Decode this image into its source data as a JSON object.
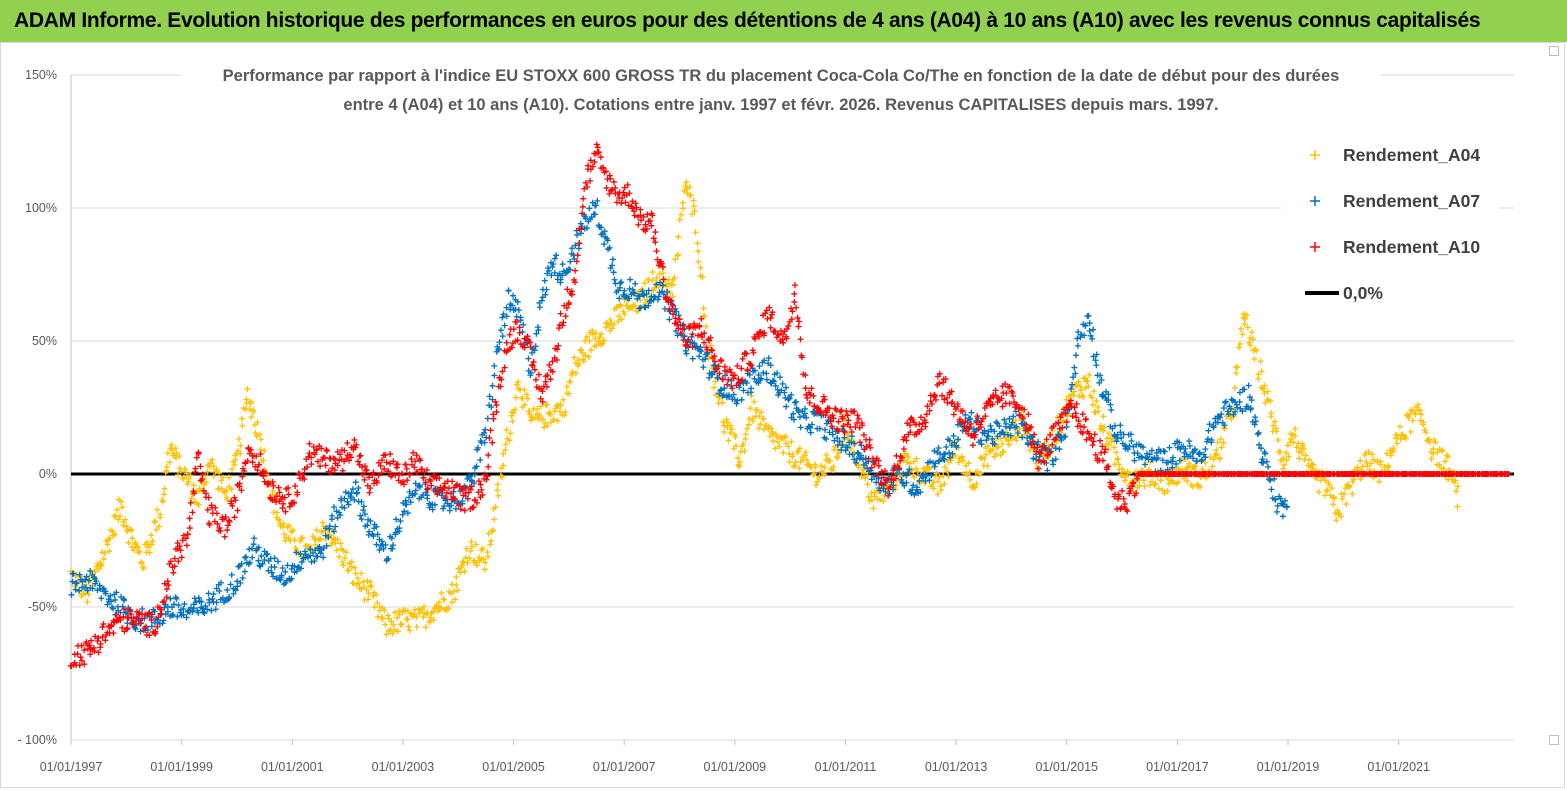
{
  "banner": {
    "title": "ADAM Informe. Evolution historique des performances en euros pour des détentions de 4 ans (A04) à 10 ans (A10) avec les revenus connus capitalisés",
    "color": "#92d050"
  },
  "chart_data": {
    "type": "scatter",
    "title_line1": "Performance par rapport à l'indice EU STOXX 600 GROSS TR  du placement Coca-Cola Co/The en fonction de la date de début pour des durées",
    "title_line2": "entre 4 (A04) et 10 ans (A10).  Cotations entre janv. 1997 et févr. 2026. Revenus  CAPITALISES depuis mars. 1997.",
    "xlabel": "",
    "ylabel": "",
    "x_ticks": [
      "01/01/1997",
      "01/01/1999",
      "01/01/2001",
      "01/01/2003",
      "01/01/2005",
      "01/01/2007",
      "01/01/2009",
      "01/01/2011",
      "01/01/2013",
      "01/01/2015",
      "01/01/2017",
      "01/01/2019",
      "01/01/2021"
    ],
    "y_ticks": [
      "150%",
      "100%",
      "50%",
      "0%",
      "-50%",
      "- 100%"
    ],
    "xlim": [
      "1997-01-01",
      "2023-02-01"
    ],
    "ylim": [
      -1.0,
      1.5
    ],
    "grid": "horizontal",
    "legend_position": "right",
    "series": [
      {
        "name": "Rendement_A04",
        "color": "#ffc000",
        "marker": "+",
        "points": [
          [
            1997.0,
            -0.38
          ],
          [
            1997.3,
            -0.45
          ],
          [
            1997.6,
            -0.3
          ],
          [
            1997.9,
            -0.12
          ],
          [
            1998.1,
            -0.25
          ],
          [
            1998.3,
            -0.33
          ],
          [
            1998.6,
            -0.15
          ],
          [
            1998.8,
            0.1
          ],
          [
            1998.9,
            0.05
          ],
          [
            1999.1,
            -0.02
          ],
          [
            1999.3,
            -0.1
          ],
          [
            1999.5,
            0.05
          ],
          [
            1999.8,
            -0.08
          ],
          [
            2000.0,
            0.05
          ],
          [
            2000.2,
            0.3
          ],
          [
            2000.4,
            0.15
          ],
          [
            2000.6,
            -0.05
          ],
          [
            2000.8,
            -0.2
          ],
          [
            2001.0,
            -0.25
          ],
          [
            2001.3,
            -0.3
          ],
          [
            2001.6,
            -0.2
          ],
          [
            2001.9,
            -0.3
          ],
          [
            2002.1,
            -0.38
          ],
          [
            2002.4,
            -0.45
          ],
          [
            2002.7,
            -0.57
          ],
          [
            2003.0,
            -0.55
          ],
          [
            2003.3,
            -0.55
          ],
          [
            2003.6,
            -0.5
          ],
          [
            2003.9,
            -0.45
          ],
          [
            2004.2,
            -0.28
          ],
          [
            2004.5,
            -0.33
          ],
          [
            2004.7,
            -0.1
          ],
          [
            2004.9,
            0.15
          ],
          [
            2005.1,
            0.35
          ],
          [
            2005.3,
            0.2
          ],
          [
            2005.6,
            0.22
          ],
          [
            2005.9,
            0.25
          ],
          [
            2006.1,
            0.4
          ],
          [
            2006.4,
            0.5
          ],
          [
            2006.7,
            0.55
          ],
          [
            2007.0,
            0.62
          ],
          [
            2007.3,
            0.65
          ],
          [
            2007.6,
            0.75
          ],
          [
            2007.9,
            0.7
          ],
          [
            2008.1,
            1.1
          ],
          [
            2008.3,
            0.95
          ],
          [
            2008.5,
            0.5
          ],
          [
            2008.8,
            0.2
          ],
          [
            2009.1,
            0.05
          ],
          [
            2009.3,
            0.25
          ],
          [
            2009.6,
            0.15
          ],
          [
            2009.9,
            0.1
          ],
          [
            2010.2,
            0.05
          ],
          [
            2010.5,
            0.0
          ],
          [
            2010.8,
            0.05
          ],
          [
            2011.0,
            0.18
          ],
          [
            2011.3,
            0.02
          ],
          [
            2011.5,
            -0.1
          ],
          [
            2011.8,
            -0.05
          ],
          [
            2012.1,
            0.05
          ],
          [
            2012.4,
            0.0
          ],
          [
            2012.7,
            -0.05
          ],
          [
            2013.0,
            0.1
          ],
          [
            2013.3,
            -0.02
          ],
          [
            2013.6,
            0.08
          ],
          [
            2013.9,
            0.12
          ],
          [
            2014.2,
            0.2
          ],
          [
            2014.5,
            0.05
          ],
          [
            2014.8,
            0.15
          ],
          [
            2015.1,
            0.3
          ],
          [
            2015.4,
            0.35
          ],
          [
            2015.6,
            0.2
          ],
          [
            2015.9,
            0.05
          ],
          [
            2016.2,
            -0.02
          ],
          [
            2016.5,
            0.0
          ],
          [
            2016.8,
            -0.03
          ],
          [
            2017.1,
            0.02
          ],
          [
            2017.4,
            -0.02
          ],
          [
            2017.7,
            0.05
          ],
          [
            2018.0,
            0.25
          ],
          [
            2018.2,
            0.6
          ],
          [
            2018.4,
            0.45
          ],
          [
            2018.6,
            0.3
          ],
          [
            2018.9,
            0.05
          ],
          [
            2019.1,
            0.15
          ],
          [
            2019.4,
            0.0
          ],
          [
            2019.7,
            -0.05
          ],
          [
            2019.9,
            -0.15
          ],
          [
            2020.1,
            -0.05
          ],
          [
            2020.4,
            0.05
          ],
          [
            2020.7,
            0.0
          ],
          [
            2020.9,
            0.1
          ],
          [
            2021.2,
            0.2
          ],
          [
            2021.4,
            0.22
          ],
          [
            2021.6,
            0.1
          ],
          [
            2021.9,
            0.02
          ],
          [
            2022.1,
            -0.1
          ]
        ]
      },
      {
        "name": "Rendement_A07",
        "color": "#0070c0",
        "marker": "+",
        "points": [
          [
            1997.0,
            -0.42
          ],
          [
            1997.3,
            -0.4
          ],
          [
            1997.6,
            -0.45
          ],
          [
            1997.9,
            -0.5
          ],
          [
            1998.2,
            -0.55
          ],
          [
            1998.5,
            -0.55
          ],
          [
            1998.8,
            -0.5
          ],
          [
            1999.1,
            -0.52
          ],
          [
            1999.4,
            -0.5
          ],
          [
            1999.7,
            -0.45
          ],
          [
            2000.0,
            -0.4
          ],
          [
            2000.3,
            -0.28
          ],
          [
            2000.6,
            -0.35
          ],
          [
            2000.9,
            -0.38
          ],
          [
            2001.2,
            -0.3
          ],
          [
            2001.5,
            -0.3
          ],
          [
            2001.8,
            -0.15
          ],
          [
            2002.1,
            -0.05
          ],
          [
            2002.4,
            -0.2
          ],
          [
            2002.7,
            -0.3
          ],
          [
            2003.0,
            -0.15
          ],
          [
            2003.3,
            -0.05
          ],
          [
            2003.6,
            -0.1
          ],
          [
            2003.9,
            -0.1
          ],
          [
            2004.2,
            -0.05
          ],
          [
            2004.5,
            0.15
          ],
          [
            2004.7,
            0.45
          ],
          [
            2004.9,
            0.65
          ],
          [
            2005.1,
            0.6
          ],
          [
            2005.3,
            0.4
          ],
          [
            2005.5,
            0.65
          ],
          [
            2005.7,
            0.8
          ],
          [
            2005.9,
            0.75
          ],
          [
            2006.1,
            0.85
          ],
          [
            2006.3,
            0.95
          ],
          [
            2006.5,
            1.0
          ],
          [
            2006.7,
            0.85
          ],
          [
            2006.9,
            0.7
          ],
          [
            2007.1,
            0.7
          ],
          [
            2007.3,
            0.65
          ],
          [
            2007.6,
            0.7
          ],
          [
            2007.9,
            0.6
          ],
          [
            2008.1,
            0.5
          ],
          [
            2008.4,
            0.45
          ],
          [
            2008.7,
            0.35
          ],
          [
            2009.0,
            0.3
          ],
          [
            2009.3,
            0.35
          ],
          [
            2009.6,
            0.4
          ],
          [
            2009.9,
            0.3
          ],
          [
            2010.2,
            0.2
          ],
          [
            2010.5,
            0.2
          ],
          [
            2010.8,
            0.15
          ],
          [
            2011.1,
            0.1
          ],
          [
            2011.4,
            0.05
          ],
          [
            2011.7,
            -0.05
          ],
          [
            2012.0,
            0.0
          ],
          [
            2012.3,
            -0.05
          ],
          [
            2012.6,
            0.05
          ],
          [
            2012.9,
            0.1
          ],
          [
            2013.2,
            0.2
          ],
          [
            2013.5,
            0.15
          ],
          [
            2013.8,
            0.15
          ],
          [
            2014.1,
            0.2
          ],
          [
            2014.4,
            0.1
          ],
          [
            2014.7,
            0.05
          ],
          [
            2015.0,
            0.2
          ],
          [
            2015.2,
            0.5
          ],
          [
            2015.4,
            0.6
          ],
          [
            2015.6,
            0.35
          ],
          [
            2015.9,
            0.15
          ],
          [
            2016.2,
            0.1
          ],
          [
            2016.5,
            0.05
          ],
          [
            2016.8,
            0.05
          ],
          [
            2017.1,
            0.1
          ],
          [
            2017.4,
            0.05
          ],
          [
            2017.7,
            0.2
          ],
          [
            2018.0,
            0.25
          ],
          [
            2018.3,
            0.3
          ],
          [
            2018.5,
            0.1
          ],
          [
            2018.8,
            -0.1
          ],
          [
            2019.0,
            -0.15
          ]
        ]
      },
      {
        "name": "Rendement_A10",
        "color": "#ff0000",
        "marker": "+",
        "points": [
          [
            1997.0,
            -0.68
          ],
          [
            1997.3,
            -0.67
          ],
          [
            1997.6,
            -0.6
          ],
          [
            1997.9,
            -0.55
          ],
          [
            1998.2,
            -0.55
          ],
          [
            1998.5,
            -0.57
          ],
          [
            1998.7,
            -0.45
          ],
          [
            1998.9,
            -0.3
          ],
          [
            1999.1,
            -0.25
          ],
          [
            1999.3,
            0.05
          ],
          [
            1999.5,
            -0.15
          ],
          [
            1999.8,
            -0.2
          ],
          [
            2000.0,
            -0.1
          ],
          [
            2000.2,
            0.1
          ],
          [
            2000.4,
            0.05
          ],
          [
            2000.6,
            -0.05
          ],
          [
            2000.9,
            -0.1
          ],
          [
            2001.1,
            -0.05
          ],
          [
            2001.3,
            0.08
          ],
          [
            2001.6,
            0.05
          ],
          [
            2001.9,
            0.05
          ],
          [
            2002.1,
            0.12
          ],
          [
            2002.4,
            -0.05
          ],
          [
            2002.7,
            0.05
          ],
          [
            2003.0,
            -0.02
          ],
          [
            2003.2,
            0.05
          ],
          [
            2003.5,
            -0.05
          ],
          [
            2003.8,
            -0.05
          ],
          [
            2004.1,
            -0.1
          ],
          [
            2004.3,
            -0.08
          ],
          [
            2004.5,
            -0.02
          ],
          [
            2004.7,
            0.3
          ],
          [
            2004.9,
            0.5
          ],
          [
            2005.1,
            0.55
          ],
          [
            2005.3,
            0.45
          ],
          [
            2005.5,
            0.3
          ],
          [
            2005.7,
            0.4
          ],
          [
            2005.9,
            0.6
          ],
          [
            2006.1,
            0.75
          ],
          [
            2006.3,
            1.1
          ],
          [
            2006.5,
            1.2
          ],
          [
            2006.7,
            1.1
          ],
          [
            2006.9,
            1.05
          ],
          [
            2007.1,
            1.05
          ],
          [
            2007.3,
            0.95
          ],
          [
            2007.5,
            0.95
          ],
          [
            2007.8,
            0.65
          ],
          [
            2008.1,
            0.5
          ],
          [
            2008.4,
            0.55
          ],
          [
            2008.7,
            0.4
          ],
          [
            2009.0,
            0.35
          ],
          [
            2009.3,
            0.45
          ],
          [
            2009.6,
            0.6
          ],
          [
            2009.9,
            0.5
          ],
          [
            2010.1,
            0.7
          ],
          [
            2010.3,
            0.3
          ],
          [
            2010.6,
            0.25
          ],
          [
            2010.9,
            0.2
          ],
          [
            2011.2,
            0.2
          ],
          [
            2011.5,
            0.05
          ],
          [
            2011.8,
            -0.05
          ],
          [
            2012.1,
            0.15
          ],
          [
            2012.4,
            0.2
          ],
          [
            2012.7,
            0.35
          ],
          [
            2013.0,
            0.25
          ],
          [
            2013.3,
            0.15
          ],
          [
            2013.6,
            0.25
          ],
          [
            2013.9,
            0.3
          ],
          [
            2014.2,
            0.25
          ],
          [
            2014.5,
            0.05
          ],
          [
            2014.8,
            0.15
          ],
          [
            2015.1,
            0.25
          ],
          [
            2015.4,
            0.15
          ],
          [
            2015.7,
            0.05
          ],
          [
            2015.9,
            -0.1
          ],
          [
            2016.1,
            -0.1
          ],
          [
            2016.3,
            0.0
          ],
          [
            2017.0,
            0.0
          ],
          [
            2018.0,
            0.0
          ],
          [
            2019.0,
            0.0
          ],
          [
            2020.0,
            0.0
          ],
          [
            2021.0,
            0.0
          ],
          [
            2022.0,
            0.0
          ],
          [
            2023.0,
            0.0
          ]
        ]
      }
    ],
    "reference_line": {
      "name": "0,0%",
      "value": 0.0,
      "color": "#000000"
    }
  }
}
